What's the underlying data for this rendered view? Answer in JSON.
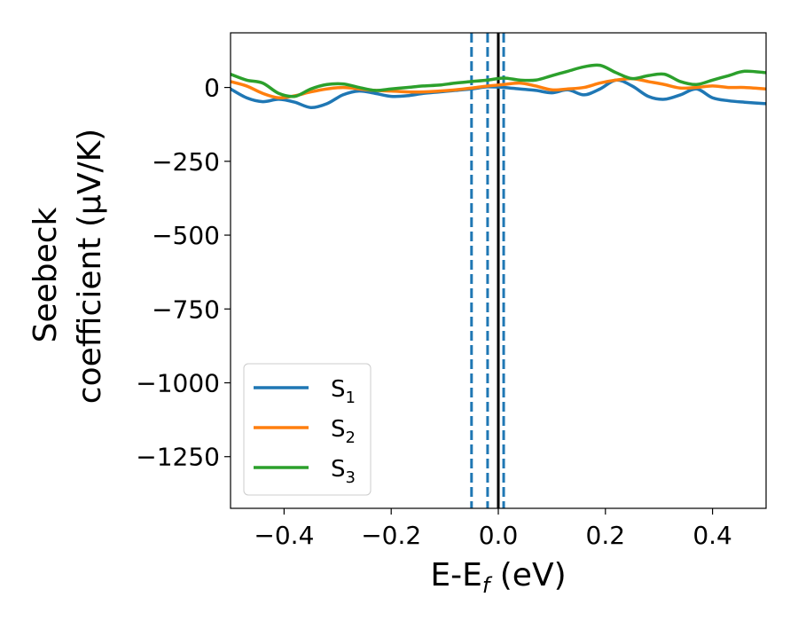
{
  "chart_data": {
    "type": "line",
    "xlabel": "E-E",
    "xlabel_sub": "f",
    "xlabel_unit": " (eV)",
    "ylabel_line1": "Seebeck",
    "ylabel_line2": "coefficient  (μV/K)",
    "xlim": [
      -0.5,
      0.5
    ],
    "ylim": [
      -1425,
      185
    ],
    "xticks": [
      -0.4,
      -0.2,
      0.0,
      0.2,
      0.4
    ],
    "xtick_labels": [
      "−0.4",
      "−0.2",
      "0.0",
      "0.2",
      "0.4"
    ],
    "yticks": [
      0,
      -250,
      -500,
      -750,
      -1000,
      -1250
    ],
    "ytick_labels": [
      "0",
      "−250",
      "−500",
      "−750",
      "−1000",
      "−1250"
    ],
    "grid": false,
    "legend_position": "bottom-left",
    "vlines": [
      {
        "x": -0.05,
        "style": "dashed",
        "color": "#1f77b4"
      },
      {
        "x": -0.02,
        "style": "dashed",
        "color": "#1f77b4"
      },
      {
        "x": 0.01,
        "style": "dashed",
        "color": "#1f77b4"
      },
      {
        "x": 0.0,
        "style": "solid",
        "color": "#000000"
      }
    ],
    "series": [
      {
        "name": "S",
        "sub": "1",
        "color": "#1f77b4",
        "x": [
          -0.5,
          -0.47,
          -0.44,
          -0.41,
          -0.38,
          -0.35,
          -0.32,
          -0.29,
          -0.26,
          -0.23,
          -0.2,
          -0.17,
          -0.14,
          -0.11,
          -0.08,
          -0.05,
          -0.02,
          0.01,
          0.04,
          0.07,
          0.1,
          0.13,
          0.16,
          0.19,
          0.22,
          0.25,
          0.28,
          0.31,
          0.34,
          0.37,
          0.4,
          0.43,
          0.46,
          0.5
        ],
        "y": [
          -5,
          -35,
          -48,
          -40,
          -50,
          -68,
          -55,
          -25,
          -12,
          -20,
          -30,
          -28,
          -20,
          -15,
          -10,
          -5,
          2,
          0,
          -5,
          -10,
          -18,
          -8,
          -25,
          -5,
          25,
          5,
          -30,
          -40,
          -25,
          -5,
          -35,
          -45,
          -50,
          -55
        ]
      },
      {
        "name": "S",
        "sub": "2",
        "color": "#ff7f0e",
        "x": [
          -0.5,
          -0.47,
          -0.44,
          -0.41,
          -0.38,
          -0.35,
          -0.32,
          -0.29,
          -0.26,
          -0.23,
          -0.2,
          -0.17,
          -0.14,
          -0.11,
          -0.08,
          -0.05,
          -0.02,
          0.01,
          0.04,
          0.07,
          0.1,
          0.13,
          0.16,
          0.19,
          0.22,
          0.25,
          0.28,
          0.31,
          0.34,
          0.37,
          0.4,
          0.43,
          0.46,
          0.5
        ],
        "y": [
          20,
          5,
          -20,
          -35,
          -28,
          -15,
          -5,
          0,
          -5,
          -10,
          -12,
          -15,
          -15,
          -12,
          -8,
          -2,
          5,
          10,
          15,
          5,
          -8,
          -5,
          0,
          15,
          25,
          30,
          20,
          10,
          -2,
          0,
          5,
          0,
          0,
          -5
        ]
      },
      {
        "name": "S",
        "sub": "3",
        "color": "#2ca02c",
        "x": [
          -0.5,
          -0.47,
          -0.44,
          -0.41,
          -0.38,
          -0.35,
          -0.32,
          -0.29,
          -0.26,
          -0.23,
          -0.2,
          -0.17,
          -0.14,
          -0.11,
          -0.08,
          -0.05,
          -0.02,
          0.01,
          0.04,
          0.07,
          0.1,
          0.13,
          0.16,
          0.19,
          0.22,
          0.25,
          0.28,
          0.31,
          0.34,
          0.37,
          0.4,
          0.43,
          0.46,
          0.5
        ],
        "y": [
          45,
          25,
          15,
          -20,
          -30,
          -5,
          10,
          12,
          0,
          -10,
          -5,
          0,
          5,
          8,
          15,
          20,
          25,
          32,
          25,
          25,
          40,
          55,
          70,
          75,
          50,
          30,
          40,
          45,
          20,
          10,
          25,
          40,
          55,
          50
        ]
      }
    ]
  }
}
